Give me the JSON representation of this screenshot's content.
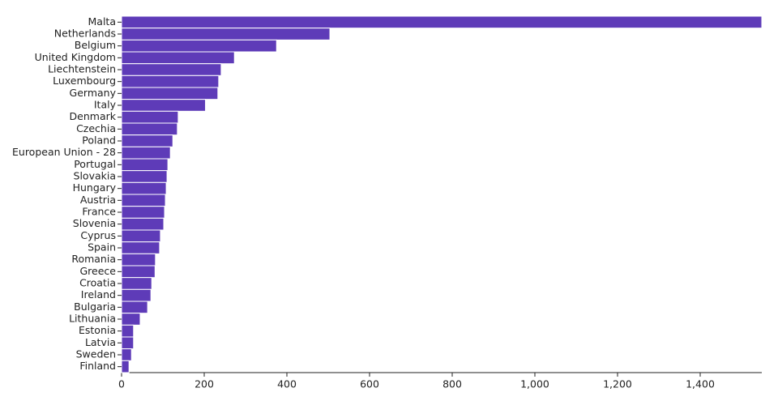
{
  "chart_data": {
    "type": "barh",
    "categories": [
      "Malta",
      "Netherlands",
      "Belgium",
      "United Kingdom",
      "Liechtenstein",
      "Luxembourg",
      "Germany",
      "Italy",
      "Denmark",
      "Czechia",
      "Poland",
      "European Union - 28",
      "Portugal",
      "Slovakia",
      "Hungary",
      "Austria",
      "France",
      "Slovenia",
      "Cyprus",
      "Spain",
      "Romania",
      "Greece",
      "Croatia",
      "Ireland",
      "Bulgaria",
      "Lithuania",
      "Estonia",
      "Latvia",
      "Sweden",
      "Finland"
    ],
    "values": [
      1549,
      504,
      375,
      273,
      241,
      235,
      233,
      203,
      137,
      135,
      124,
      118,
      112,
      110,
      108,
      106,
      104,
      102,
      94,
      92,
      82,
      81,
      73,
      71,
      63,
      45,
      29,
      29,
      24,
      18
    ],
    "color": "#5e3bb8",
    "xlim": [
      0,
      1549
    ],
    "xticks": [
      0,
      200,
      400,
      600,
      800,
      {
        "value": 1000,
        "label": "1,000"
      },
      {
        "value": 1200,
        "label": "1,200"
      },
      {
        "value": 1400,
        "label": "1,400"
      }
    ]
  }
}
